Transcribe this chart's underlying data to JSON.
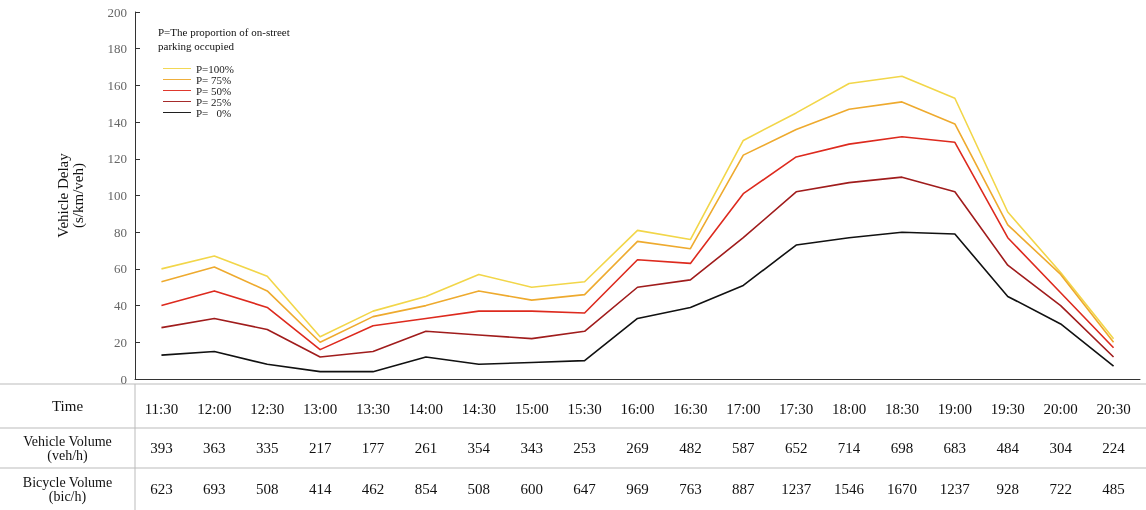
{
  "chart_data": {
    "type": "line",
    "ylabel": "Vehicle Delay\n(s/km/veh)",
    "xlabel": "Time",
    "legend_title": "P=The proportion of on-street\nparking occupied",
    "legend": "top left",
    "marker": "none",
    "line_style": "solid",
    "grid": false,
    "categories": [
      "11:30",
      "12:00",
      "12:30",
      "13:00",
      "13:30",
      "14:00",
      "14:30",
      "15:00",
      "15:30",
      "16:00",
      "16:30",
      "17:00",
      "17:30",
      "18:00",
      "18:30",
      "19:00",
      "19:30",
      "20:00",
      "20:30"
    ],
    "ylim": [
      0,
      200
    ],
    "yticks": [
      0,
      20,
      40,
      60,
      80,
      100,
      120,
      140,
      160,
      180,
      200
    ],
    "series": [
      {
        "name": "P=100%",
        "color": "#f2d649",
        "values": [
          60,
          67,
          56,
          23,
          37,
          45,
          57,
          50,
          53,
          81,
          76,
          130,
          145,
          161,
          165,
          153,
          91,
          58,
          22
        ]
      },
      {
        "name": "P= 75%",
        "color": "#eeaa2e",
        "values": [
          53,
          61,
          48,
          20,
          34,
          40,
          48,
          43,
          46,
          75,
          71,
          122,
          136,
          147,
          151,
          139,
          84,
          57,
          20
        ]
      },
      {
        "name": "P= 50%",
        "color": "#dd2a1e",
        "values": [
          40,
          48,
          39,
          16,
          29,
          33,
          37,
          37,
          36,
          65,
          63,
          101,
          121,
          128,
          132,
          129,
          77,
          47,
          17
        ]
      },
      {
        "name": "P= 25%",
        "color": "#a01c1c",
        "values": [
          28,
          33,
          27,
          12,
          15,
          26,
          24,
          22,
          26,
          50,
          54,
          77,
          102,
          107,
          110,
          102,
          62,
          40,
          12
        ]
      },
      {
        "name": "P=   0%",
        "color": "#111111",
        "values": [
          13,
          15,
          8,
          4,
          4,
          12,
          8,
          9,
          10,
          33,
          39,
          51,
          73,
          77,
          80,
          79,
          45,
          30,
          7
        ]
      }
    ],
    "annotations": [
      "Vehicle Volume\n(veh/h)",
      "393",
      "363",
      "335",
      "217",
      "177",
      "261",
      "354",
      "343",
      "253",
      "269",
      "482",
      "587",
      "652",
      "714",
      "698",
      "683",
      "484",
      "304",
      "224",
      "Bicycle Volume\n(bic/h)",
      "623",
      "693",
      "508",
      "414",
      "462",
      "854",
      "508",
      "600",
      "647",
      "969",
      "763",
      "887",
      "1237",
      "1546",
      "1670",
      "1237",
      "928",
      "722",
      "485"
    ]
  }
}
